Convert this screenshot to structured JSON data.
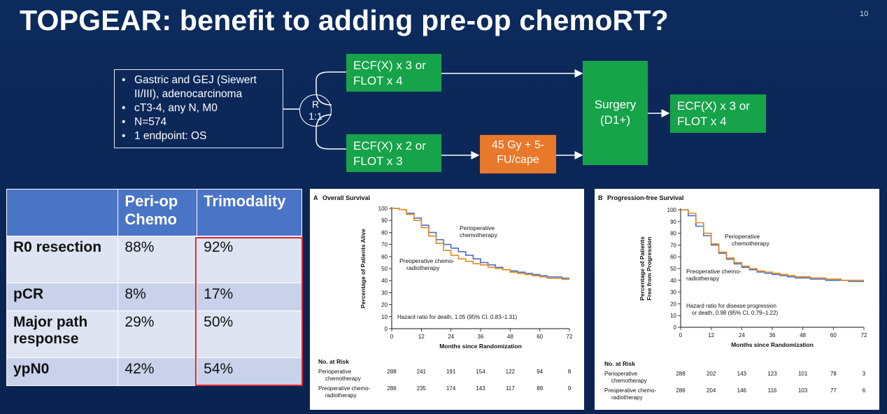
{
  "slide": {
    "title": "TOPGEAR: benefit to adding pre-op chemoRT?",
    "page_number": "10"
  },
  "design": {
    "criteria": [
      "Gastric and GEJ (Siewert II/III), adenocarcinoma",
      "cT3-4, any N, M0",
      "N=574",
      "1 endpoint: OS"
    ],
    "randomization": {
      "line1": "R",
      "line2": "1:1"
    },
    "arm1": "ECF(X) x 3 or FLOT x 4",
    "arm2": "ECF(X) x 2 or FLOT x 3",
    "radiation": "45 Gy + 5-FU/cape",
    "surgery": "Surgery (D1+)",
    "post_op": "ECF(X) x 3 or FLOT x 4",
    "colors": {
      "green": "#16a34a",
      "orange": "#e8792a",
      "background": "#0b2450"
    }
  },
  "table": {
    "headers": [
      "",
      "Peri-op Chemo",
      "Trimodality"
    ],
    "rows": [
      {
        "label": "R0 resection",
        "periop": "88%",
        "trimodality": "92%"
      },
      {
        "label": "pCR",
        "periop": "8%",
        "trimodality": "17%"
      },
      {
        "label": "Major path response",
        "periop": "29%",
        "trimodality": "50%"
      },
      {
        "label": "ypN0",
        "periop": "42%",
        "trimodality": "54%"
      }
    ],
    "colors": {
      "header": "#4a74c6",
      "row_light": "#dfe4f3",
      "row_dark": "#c9d2ea",
      "highlight": "#e0262f"
    }
  },
  "chart_data": [
    {
      "type": "line",
      "panel_label": "A",
      "title": "Overall Survival",
      "xlabel": "Months since Randomization",
      "ylabel": "Percentage of Patients Alive",
      "xlim": [
        0,
        72
      ],
      "ylim": [
        0,
        100
      ],
      "xticks": [
        0,
        12,
        24,
        36,
        48,
        60,
        72
      ],
      "yticks": [
        0,
        10,
        20,
        30,
        40,
        50,
        60,
        70,
        80,
        90,
        100
      ],
      "annotation": "Hazard ratio for death, 1.05 (95% CI, 0.83–1.31)",
      "series": [
        {
          "name": "Perioperative chemotherapy",
          "color": "#4a6fc9",
          "x": [
            0,
            3,
            6,
            9,
            12,
            15,
            18,
            21,
            24,
            27,
            30,
            33,
            36,
            39,
            42,
            45,
            48,
            51,
            54,
            57,
            60,
            63,
            66,
            69,
            72
          ],
          "y": [
            100,
            99,
            96,
            92,
            86,
            80,
            74,
            70,
            67,
            64,
            61,
            58,
            55,
            53,
            51,
            49,
            48,
            47,
            46,
            45,
            44,
            43,
            43,
            42,
            42
          ]
        },
        {
          "name": "Preoperative chemo-radiotherapy",
          "color": "#e08a1e",
          "x": [
            0,
            3,
            6,
            9,
            12,
            15,
            18,
            21,
            24,
            27,
            30,
            33,
            36,
            39,
            42,
            45,
            48,
            51,
            54,
            57,
            60,
            63,
            66,
            69,
            72
          ],
          "y": [
            100,
            99,
            95,
            90,
            84,
            77,
            71,
            65,
            61,
            58,
            56,
            54,
            53,
            51,
            50,
            49,
            47,
            46,
            45,
            44,
            43,
            42,
            42,
            41,
            41
          ]
        }
      ],
      "series_labels": [
        {
          "line1": "Perioperative",
          "line2": "chemotherapy"
        },
        {
          "line1": "Preoperative chemo-",
          "line2": "radiotherapy"
        }
      ],
      "risk_table": {
        "header": "No. at Risk",
        "rows": [
          {
            "label1": "Perioperative",
            "label2": "chemotherapy",
            "values": [
              "288",
              "241",
              "191",
              "154",
              "122",
              "94",
              "8"
            ]
          },
          {
            "label1": "Preoperative chemo-",
            "label2": "radiotherapy",
            "values": [
              "286",
              "235",
              "174",
              "143",
              "117",
              "89",
              "9"
            ]
          }
        ]
      }
    },
    {
      "type": "line",
      "panel_label": "B",
      "title": "Progression-free Survival",
      "xlabel": "Months since Randomization",
      "ylabel": "Percentage of Patients Free from Progression",
      "xlim": [
        0,
        72
      ],
      "ylim": [
        0,
        100
      ],
      "xticks": [
        0,
        12,
        24,
        36,
        48,
        60,
        72
      ],
      "yticks": [
        0,
        10,
        20,
        30,
        40,
        50,
        60,
        70,
        80,
        90,
        100
      ],
      "annotation_line1": "Hazard ratio for disease progression",
      "annotation_line2": "or death, 0.98 (95% CI, 0.79–1.22)",
      "series": [
        {
          "name": "Perioperative chemotherapy",
          "color": "#4a6fc9",
          "x": [
            0,
            3,
            6,
            9,
            12,
            15,
            18,
            21,
            24,
            27,
            30,
            33,
            36,
            39,
            42,
            45,
            48,
            51,
            54,
            57,
            60,
            63,
            66,
            69,
            72
          ],
          "y": [
            100,
            95,
            86,
            78,
            70,
            63,
            58,
            54,
            51,
            49,
            47,
            46,
            45,
            44,
            43,
            42,
            42,
            41,
            41,
            40,
            40,
            40,
            39,
            39,
            39
          ]
        },
        {
          "name": "Preoperative chemo-radiotherapy",
          "color": "#e08a1e",
          "x": [
            0,
            3,
            6,
            9,
            12,
            15,
            18,
            21,
            24,
            27,
            30,
            33,
            36,
            39,
            42,
            45,
            48,
            51,
            54,
            57,
            60,
            63,
            66,
            69,
            72
          ],
          "y": [
            100,
            97,
            89,
            80,
            71,
            64,
            59,
            55,
            52,
            50,
            48,
            47,
            46,
            45,
            44,
            43,
            43,
            42,
            42,
            41,
            41,
            40,
            40,
            40,
            40
          ]
        }
      ],
      "series_labels": [
        {
          "line1": "Perioperative",
          "line2": "chemotherapy"
        },
        {
          "line1": "Preoperative chemo-",
          "line2": "radiotherapy"
        }
      ],
      "risk_table": {
        "header": "No. at Risk",
        "rows": [
          {
            "label1": "Perioperative",
            "label2": "chemotherapy",
            "values": [
              "288",
              "202",
              "143",
              "123",
              "101",
              "78",
              "3"
            ]
          },
          {
            "label1": "Preoperative chemo-",
            "label2": "radiotherapy",
            "values": [
              "286",
              "204",
              "146",
              "116",
              "103",
              "77",
              "6"
            ]
          }
        ]
      }
    }
  ]
}
